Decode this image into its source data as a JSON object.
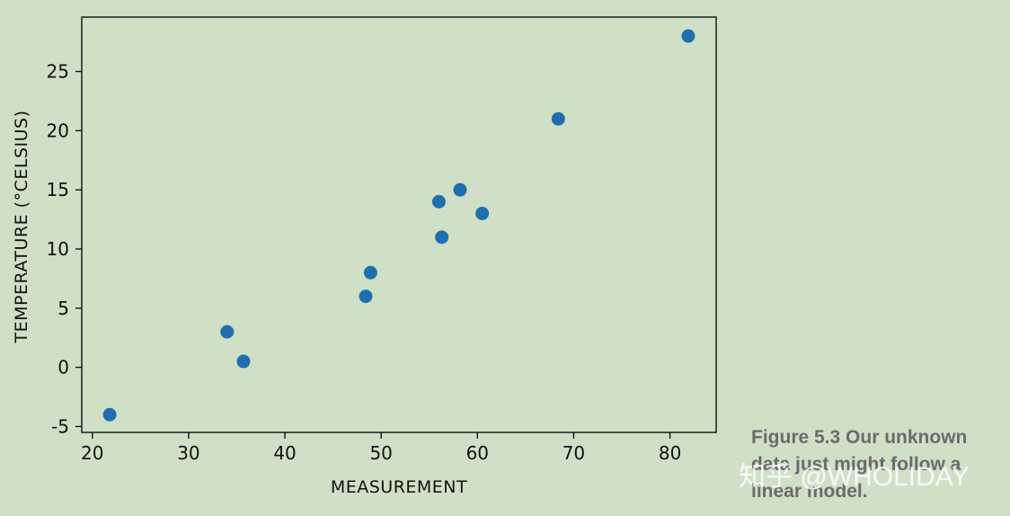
{
  "chart_data": {
    "type": "scatter",
    "xlabel": "MEASUREMENT",
    "ylabel": "TEMPERATURE (°CELSIUS)",
    "xlim": [
      18.9,
      84.8
    ],
    "ylim": [
      -5.5,
      29.6
    ],
    "x_ticks": [
      20,
      30,
      40,
      50,
      60,
      70,
      80
    ],
    "y_ticks": [
      -5,
      0,
      5,
      10,
      15,
      20,
      25
    ],
    "grid": false,
    "marker_color": "#1f6fae",
    "points": [
      {
        "x": 21.8,
        "y": -4.0
      },
      {
        "x": 34.0,
        "y": 3.0
      },
      {
        "x": 35.7,
        "y": 0.5
      },
      {
        "x": 48.4,
        "y": 6.0
      },
      {
        "x": 48.9,
        "y": 8.0
      },
      {
        "x": 56.0,
        "y": 14.0
      },
      {
        "x": 56.3,
        "y": 11.0
      },
      {
        "x": 58.2,
        "y": 15.0
      },
      {
        "x": 60.5,
        "y": 13.0
      },
      {
        "x": 68.4,
        "y": 21.0
      },
      {
        "x": 81.9,
        "y": 28.0
      }
    ]
  },
  "caption": {
    "text": "Figure 5.3  Our unknown data just might follow a linear model."
  },
  "watermark": "知乎 @WHOLIDAY",
  "colors": {
    "background": "#cfe0c7",
    "caption": "#6b6b6b"
  }
}
